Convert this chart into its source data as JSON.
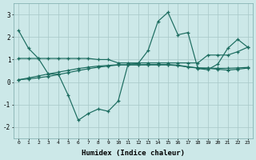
{
  "xlabel": "Humidex (Indice chaleur)",
  "xlim": [
    -0.5,
    23.5
  ],
  "ylim": [
    -2.5,
    3.5
  ],
  "yticks": [
    -2,
    -1,
    0,
    1,
    2,
    3
  ],
  "xticks": [
    0,
    1,
    2,
    3,
    4,
    5,
    6,
    7,
    8,
    9,
    10,
    11,
    12,
    13,
    14,
    15,
    16,
    17,
    18,
    19,
    20,
    21,
    22,
    23
  ],
  "line_color": "#1a6b5e",
  "bg_color": "#cce8e8",
  "grid_color": "#a8c8c8",
  "line1": [
    2.3,
    1.5,
    1.05,
    0.35,
    0.35,
    -0.6,
    -1.7,
    -1.4,
    -1.2,
    -1.3,
    -0.85,
    0.8,
    0.82,
    1.4,
    2.7,
    3.1,
    2.1,
    2.2,
    0.6,
    0.55,
    0.8,
    1.5,
    1.9,
    1.55
  ],
  "line2": [
    1.05,
    1.05,
    1.05,
    1.05,
    1.05,
    1.05,
    1.05,
    1.05,
    1.0,
    1.0,
    0.85,
    0.85,
    0.85,
    0.85,
    0.85,
    0.85,
    0.85,
    0.85,
    0.85,
    1.2,
    1.2,
    1.2,
    1.35,
    1.55
  ],
  "line3": [
    0.1,
    0.18,
    0.27,
    0.36,
    0.44,
    0.52,
    0.6,
    0.66,
    0.71,
    0.74,
    0.77,
    0.77,
    0.77,
    0.78,
    0.78,
    0.78,
    0.75,
    0.68,
    0.63,
    0.62,
    0.61,
    0.61,
    0.63,
    0.65
  ],
  "line4": [
    0.1,
    0.14,
    0.19,
    0.25,
    0.33,
    0.42,
    0.51,
    0.59,
    0.66,
    0.71,
    0.76,
    0.76,
    0.76,
    0.76,
    0.76,
    0.76,
    0.73,
    0.67,
    0.62,
    0.61,
    0.57,
    0.53,
    0.57,
    0.62
  ]
}
